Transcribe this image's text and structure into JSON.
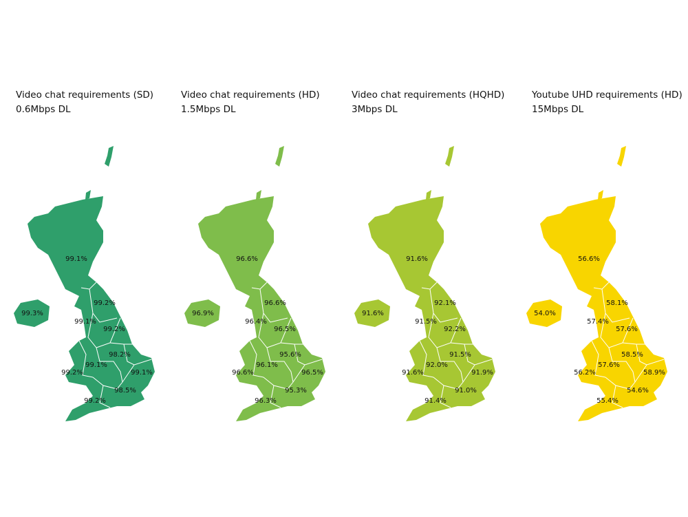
{
  "maps": [
    {
      "title": "Video chat requirements (SD)",
      "subtitle": "0.6Mbps DL",
      "regions": [
        "99.1%",
        "99.3%",
        "99.2%",
        "99.1%",
        "99.2%",
        "98.2%",
        "99.1%",
        "99.2%",
        "99.1%",
        "98.5%",
        "99.2%"
      ]
    },
    {
      "title": "Video chat requirements (HD)",
      "subtitle": "1.5Mbps DL",
      "regions": [
        "96.6%",
        "96.9%",
        "96.6%",
        "96.4%",
        "96.5%",
        "95.6%",
        "96.1%",
        "96.6%",
        "96.5%",
        "95.3%",
        "96.3%"
      ]
    },
    {
      "title": "Video chat requirements (HQHD)",
      "subtitle": "3Mbps DL",
      "regions": [
        "91.6%",
        "91.6%",
        "92.1%",
        "91.5%",
        "92.2%",
        "91.5%",
        "92.0%",
        "91.6%",
        "91.9%",
        "91.0%",
        "91.4%"
      ]
    },
    {
      "title": "Youtube UHD requirements (HD)",
      "subtitle": "15Mbps DL",
      "regions": [
        "56.6%",
        "54.0%",
        "58.1%",
        "57.4%",
        "57.6%",
        "58.5%",
        "57.6%",
        "56.2%",
        "58.9%",
        "54.6%",
        "55.4%"
      ]
    }
  ]
}
